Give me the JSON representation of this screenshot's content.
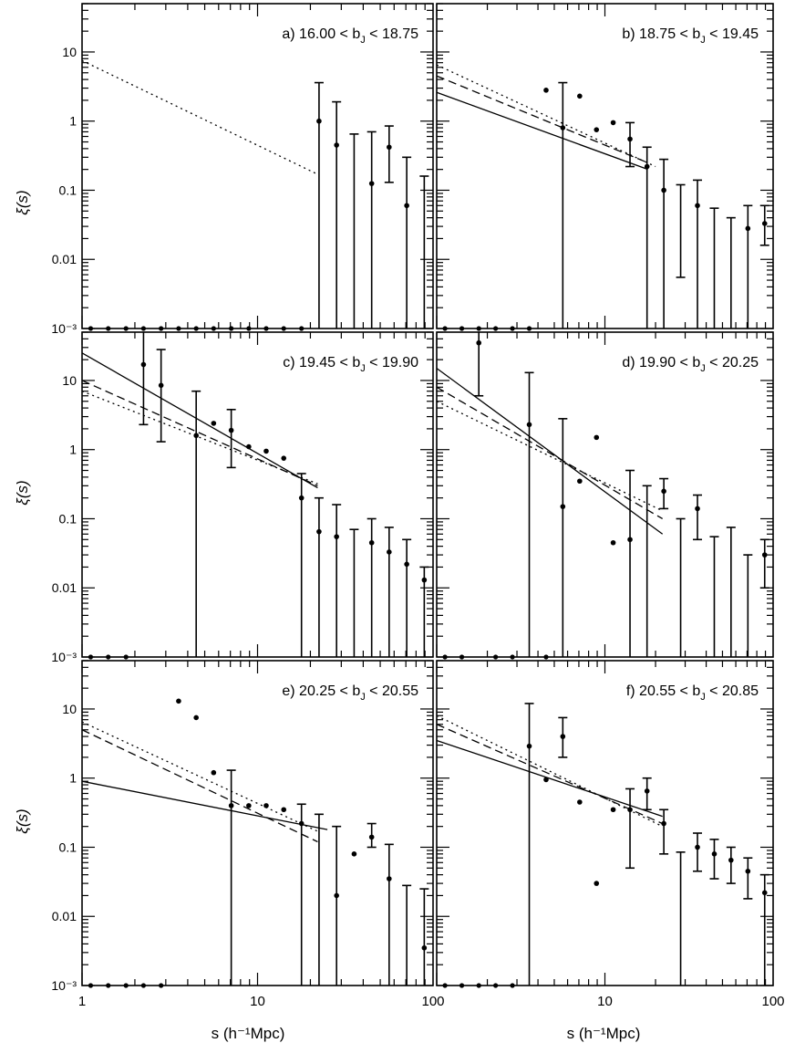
{
  "figure": {
    "ylabel": "ξ(s)",
    "xlabel": "s (h⁻¹Mpc)"
  },
  "chart_data": [
    {
      "type": "scatter",
      "panel": "a",
      "title_prefix": "a)  16.00 < b",
      "title_sub": "J",
      "title_suffix": " < 18.75",
      "xscale": "log",
      "yscale": "log",
      "xlim": [
        1,
        100
      ],
      "ylim": [
        0.001,
        50
      ],
      "x_ticks": [
        "1",
        "10",
        "100"
      ],
      "y_ticks": [
        "10⁻³",
        "0.01",
        "0.1",
        "1",
        "10"
      ],
      "points": [
        [
          22.4,
          1.0,
          0.001,
          3.6
        ],
        [
          28.2,
          0.45,
          0.001,
          1.9
        ],
        [
          35.5,
          0.001,
          0.001,
          0.65
        ],
        [
          44.7,
          0.125,
          0.001,
          0.7
        ],
        [
          56.2,
          0.42,
          0.13,
          0.85
        ],
        [
          70.8,
          0.06,
          0.001,
          0.3
        ],
        [
          89.1,
          0.001,
          0.001,
          0.16
        ]
      ],
      "floor_points": [
        1.12,
        1.41,
        1.78,
        2.24,
        2.82,
        3.55,
        4.47,
        5.62,
        7.08,
        8.91,
        11.2,
        14.1,
        17.8
      ],
      "lines": [
        {
          "style": "dotted",
          "from": [
            1,
            7.5
          ],
          "to": [
            22,
            0.17
          ]
        }
      ]
    },
    {
      "type": "scatter",
      "panel": "b",
      "title_prefix": "b)  18.75 < b",
      "title_sub": "J",
      "title_suffix": " < 19.45",
      "xscale": "log",
      "yscale": "log",
      "xlim": [
        1,
        100
      ],
      "ylim": [
        0.001,
        50
      ],
      "x_ticks": [
        "1",
        "10",
        "100"
      ],
      "y_ticks": [
        "10⁻³",
        "0.01",
        "0.1",
        "1",
        "10"
      ],
      "points": [
        [
          4.47,
          2.8,
          null,
          null
        ],
        [
          5.62,
          0.8,
          0.001,
          3.6
        ],
        [
          7.08,
          2.3,
          null,
          null
        ],
        [
          8.91,
          0.75,
          null,
          null
        ],
        [
          11.2,
          0.95,
          null,
          null
        ],
        [
          14.1,
          0.55,
          0.22,
          0.95
        ],
        [
          17.8,
          0.22,
          0.001,
          0.42
        ],
        [
          22.4,
          0.1,
          0.001,
          0.28
        ],
        [
          28.2,
          0.001,
          0.0055,
          0.12
        ],
        [
          35.5,
          0.06,
          0.001,
          0.14
        ],
        [
          44.7,
          0.001,
          0.001,
          0.055
        ],
        [
          56.2,
          0.001,
          0.001,
          0.04
        ],
        [
          70.8,
          0.028,
          0.001,
          0.06
        ],
        [
          89.1,
          0.033,
          0.016,
          0.06
        ]
      ],
      "floor_points": [
        1.12,
        1.41,
        1.78,
        2.24,
        2.82,
        3.55
      ],
      "lines": [
        {
          "style": "solid",
          "from": [
            1,
            2.6
          ],
          "to": [
            18,
            0.2
          ]
        },
        {
          "style": "dashed",
          "from": [
            1,
            4.5
          ],
          "to": [
            18,
            0.25
          ]
        },
        {
          "style": "dotted",
          "from": [
            1,
            6.5
          ],
          "to": [
            20,
            0.22
          ]
        }
      ]
    },
    {
      "type": "scatter",
      "panel": "c",
      "title_prefix": "c)  19.45 < b",
      "title_sub": "J",
      "title_suffix": " < 19.90",
      "xscale": "log",
      "yscale": "log",
      "xlim": [
        1,
        100
      ],
      "ylim": [
        0.001,
        50
      ],
      "x_ticks": [
        "1",
        "10",
        "100"
      ],
      "y_ticks": [
        "10⁻³",
        "0.01",
        "0.1",
        "1",
        "10"
      ],
      "points": [
        [
          2.24,
          17,
          2.3,
          55
        ],
        [
          2.82,
          8.5,
          1.3,
          28
        ],
        [
          4.47,
          1.6,
          0.001,
          7
        ],
        [
          5.62,
          2.4,
          null,
          null
        ],
        [
          7.08,
          1.9,
          0.55,
          3.8
        ],
        [
          8.91,
          1.1,
          null,
          null
        ],
        [
          11.2,
          0.95,
          null,
          null
        ],
        [
          14.1,
          0.75,
          null,
          null
        ],
        [
          17.8,
          0.2,
          0.001,
          0.45
        ],
        [
          22.4,
          0.065,
          0.001,
          0.2
        ],
        [
          28.2,
          0.055,
          0.001,
          0.16
        ],
        [
          35.5,
          0.001,
          0.001,
          0.07
        ],
        [
          44.7,
          0.045,
          0.001,
          0.1
        ],
        [
          56.2,
          0.033,
          0.001,
          0.075
        ],
        [
          70.8,
          0.022,
          0.001,
          0.05
        ],
        [
          89.1,
          0.013,
          0.001,
          0.02
        ]
      ],
      "floor_points": [
        1.12,
        1.41,
        1.78
      ],
      "lines": [
        {
          "style": "solid",
          "from": [
            1,
            25
          ],
          "to": [
            22,
            0.28
          ]
        },
        {
          "style": "dashed",
          "from": [
            1,
            10
          ],
          "to": [
            22,
            0.3
          ]
        },
        {
          "style": "dotted",
          "from": [
            1,
            7
          ],
          "to": [
            22,
            0.32
          ]
        }
      ]
    },
    {
      "type": "scatter",
      "panel": "d",
      "title_prefix": "d)  19.90 < b",
      "title_sub": "J",
      "title_suffix": " < 20.25",
      "xscale": "log",
      "yscale": "log",
      "xlim": [
        1,
        100
      ],
      "ylim": [
        0.001,
        50
      ],
      "x_ticks": [
        "1",
        "10",
        "100"
      ],
      "y_ticks": [
        "10⁻³",
        "0.01",
        "0.1",
        "1",
        "10"
      ],
      "points": [
        [
          1.78,
          35,
          6,
          200
        ],
        [
          3.55,
          2.3,
          0.001,
          13
        ],
        [
          5.62,
          0.15,
          0.001,
          2.8
        ],
        [
          7.08,
          0.35,
          null,
          null
        ],
        [
          8.91,
          1.5,
          null,
          null
        ],
        [
          11.2,
          0.045,
          null,
          null
        ],
        [
          14.1,
          0.05,
          0.001,
          0.5
        ],
        [
          17.8,
          0.001,
          0.001,
          0.3
        ],
        [
          22.4,
          0.25,
          0.14,
          0.38
        ],
        [
          28.2,
          0.001,
          0.001,
          0.1
        ],
        [
          35.5,
          0.14,
          0.05,
          0.22
        ],
        [
          44.7,
          0.001,
          0.001,
          0.055
        ],
        [
          56.2,
          0.001,
          0.001,
          0.075
        ],
        [
          70.8,
          0.001,
          0.001,
          0.03
        ],
        [
          89.1,
          0.03,
          0.01,
          0.05
        ]
      ],
      "floor_points": [
        1.12,
        1.41,
        2.24,
        2.82,
        4.47
      ],
      "lines": [
        {
          "style": "solid",
          "from": [
            1,
            15
          ],
          "to": [
            22,
            0.06
          ]
        },
        {
          "style": "dashed",
          "from": [
            1,
            8
          ],
          "to": [
            22,
            0.1
          ]
        },
        {
          "style": "dotted",
          "from": [
            1,
            5
          ],
          "to": [
            22,
            0.13
          ]
        }
      ]
    },
    {
      "type": "scatter",
      "panel": "e",
      "title_prefix": "e)  20.25 < b",
      "title_sub": "J",
      "title_suffix": " < 20.55",
      "xscale": "log",
      "yscale": "log",
      "xlim": [
        1,
        100
      ],
      "ylim": [
        0.001,
        50
      ],
      "x_ticks": [
        "1",
        "10",
        "100"
      ],
      "y_ticks": [
        "10⁻³",
        "0.01",
        "0.1",
        "1",
        "10"
      ],
      "points": [
        [
          3.55,
          13,
          null,
          null
        ],
        [
          4.47,
          7.5,
          null,
          null
        ],
        [
          5.62,
          1.2,
          null,
          null
        ],
        [
          7.08,
          0.4,
          0.001,
          1.3
        ],
        [
          8.91,
          0.4,
          null,
          null
        ],
        [
          11.2,
          0.4,
          null,
          null
        ],
        [
          14.1,
          0.35,
          null,
          null
        ],
        [
          17.8,
          0.22,
          0.001,
          0.42
        ],
        [
          22.4,
          0.001,
          0.001,
          0.3
        ],
        [
          28.2,
          0.02,
          0.001,
          0.2
        ],
        [
          35.5,
          0.08,
          null,
          null
        ],
        [
          44.7,
          0.14,
          0.1,
          0.22
        ],
        [
          56.2,
          0.035,
          0.001,
          0.11
        ],
        [
          70.8,
          0.001,
          0.001,
          0.028
        ],
        [
          89.1,
          0.0035,
          0.001,
          0.025
        ]
      ],
      "floor_points": [
        1.12,
        1.41,
        1.78,
        2.24,
        2.82
      ],
      "lines": [
        {
          "style": "solid",
          "from": [
            1,
            0.9
          ],
          "to": [
            25,
            0.18
          ]
        },
        {
          "style": "dashed",
          "from": [
            1,
            5
          ],
          "to": [
            22,
            0.12
          ]
        },
        {
          "style": "dotted",
          "from": [
            1,
            6.5
          ],
          "to": [
            22,
            0.17
          ]
        }
      ]
    },
    {
      "type": "scatter",
      "panel": "f",
      "title_prefix": "f)  20.55 < b",
      "title_sub": "J",
      "title_suffix": " < 20.85",
      "xscale": "log",
      "yscale": "log",
      "xlim": [
        1,
        100
      ],
      "ylim": [
        0.001,
        50
      ],
      "x_ticks": [
        "1",
        "10",
        "100"
      ],
      "y_ticks": [
        "10⁻³",
        "0.01",
        "0.1",
        "1",
        "10"
      ],
      "points": [
        [
          3.55,
          2.9,
          0.001,
          12
        ],
        [
          4.47,
          0.95,
          null,
          null
        ],
        [
          5.62,
          4,
          2,
          7.5
        ],
        [
          7.08,
          0.45,
          null,
          null
        ],
        [
          8.91,
          0.03,
          null,
          null
        ],
        [
          11.2,
          0.35,
          null,
          null
        ],
        [
          14.1,
          0.35,
          0.05,
          0.7
        ],
        [
          17.8,
          0.65,
          0.35,
          1.0
        ],
        [
          22.4,
          0.22,
          0.08,
          0.35
        ],
        [
          28.2,
          0.001,
          0.001,
          0.085
        ],
        [
          35.5,
          0.1,
          0.045,
          0.16
        ],
        [
          44.7,
          0.08,
          0.035,
          0.13
        ],
        [
          56.2,
          0.065,
          0.03,
          0.1
        ],
        [
          70.8,
          0.045,
          0.018,
          0.07
        ],
        [
          89.1,
          0.022,
          0.001,
          0.04
        ]
      ],
      "floor_points": [
        1.12,
        1.41,
        1.78,
        2.24,
        2.82
      ],
      "lines": [
        {
          "style": "solid",
          "from": [
            1,
            3.5
          ],
          "to": [
            22,
            0.28
          ]
        },
        {
          "style": "dashed",
          "from": [
            1,
            6
          ],
          "to": [
            22,
            0.22
          ]
        },
        {
          "style": "dotted",
          "from": [
            1,
            8
          ],
          "to": [
            22,
            0.2
          ]
        }
      ]
    }
  ]
}
